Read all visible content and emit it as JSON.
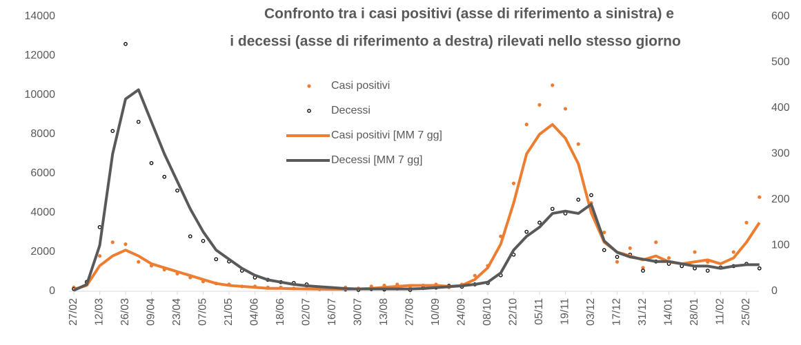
{
  "chart_data": {
    "type": "line",
    "title": [
      "Confronto tra i casi positivi (asse di riferimento a sinistra) e",
      "i decessi (asse di riferimento a destra) rilevati nello stesso giorno"
    ],
    "categories": [
      "27/02",
      null,
      "12/03",
      null,
      "26/03",
      null,
      "09/04",
      null,
      "23/04",
      null,
      "07/05",
      null,
      "21/05",
      null,
      "04/06",
      null,
      "18/06",
      null,
      "02/07",
      null,
      "16/07",
      null,
      "30/07",
      null,
      "13/08",
      null,
      "27/08",
      null,
      "10/09",
      null,
      "24/09",
      null,
      "08/10",
      null,
      "22/10",
      null,
      "05/11",
      null,
      "19/11",
      null,
      "03/12",
      null,
      "17/12",
      null,
      "31/12",
      null,
      "14/01",
      null,
      "28/01",
      null,
      "11/02",
      null,
      "25/02",
      null
    ],
    "ylim": [
      0,
      14000
    ],
    "yticks": [
      0,
      2000,
      4000,
      6000,
      8000,
      10000,
      12000,
      14000
    ],
    "y2lim": [
      0,
      600
    ],
    "y2ticks": [
      0,
      100,
      200,
      300,
      400,
      500,
      600
    ],
    "series": [
      {
        "name": "Casi positivi",
        "color": "#ed7d31",
        "mode": "markers",
        "values": [
          200,
          500,
          1800,
          2500,
          2400,
          1500,
          1300,
          1100,
          900,
          700,
          500,
          400,
          350,
          250,
          250,
          200,
          200,
          150,
          150,
          100,
          150,
          200,
          150,
          250,
          300,
          350,
          250,
          300,
          350,
          200,
          350,
          800,
          1300,
          2800,
          5500,
          8500,
          9500,
          10500,
          9300,
          7500,
          4500,
          3000,
          1500,
          2200,
          1200,
          2500,
          1700,
          1300,
          2000,
          1500,
          1200,
          2000,
          3500,
          4800
        ]
      },
      {
        "name": "Decessi",
        "color": "#000000",
        "mode": "markers",
        "axis": "y2",
        "values": [
          5,
          20,
          140,
          350,
          540,
          370,
          280,
          250,
          220,
          120,
          110,
          70,
          65,
          45,
          30,
          25,
          20,
          18,
          15,
          8,
          6,
          4,
          3,
          5,
          4,
          6,
          3,
          7,
          8,
          12,
          10,
          15,
          18,
          35,
          80,
          130,
          150,
          180,
          170,
          200,
          210,
          90,
          75,
          80,
          45,
          65,
          60,
          55,
          50,
          45,
          52,
          55,
          60,
          50
        ]
      },
      {
        "name": "Casi positivi [MM 7 gg]",
        "color": "#ed7d31",
        "mode": "line",
        "values": [
          100,
          300,
          1300,
          1800,
          2100,
          1800,
          1400,
          1200,
          1000,
          800,
          600,
          400,
          300,
          250,
          200,
          150,
          150,
          130,
          120,
          110,
          100,
          100,
          120,
          150,
          200,
          250,
          300,
          300,
          300,
          250,
          300,
          600,
          1200,
          2400,
          4500,
          7000,
          8000,
          8500,
          7800,
          6500,
          4000,
          2500,
          2000,
          1800,
          1600,
          1800,
          1500,
          1400,
          1500,
          1600,
          1400,
          1700,
          2500,
          3500
        ]
      },
      {
        "name": "Decessi [MM 7 gg]",
        "color": "#595959",
        "mode": "line",
        "axis": "y2",
        "values": [
          2,
          15,
          100,
          300,
          420,
          440,
          370,
          300,
          240,
          180,
          130,
          90,
          70,
          50,
          35,
          25,
          20,
          15,
          12,
          10,
          8,
          6,
          5,
          5,
          5,
          5,
          5,
          6,
          8,
          10,
          12,
          15,
          20,
          40,
          90,
          120,
          140,
          170,
          175,
          170,
          190,
          110,
          85,
          75,
          70,
          65,
          65,
          60,
          55,
          55,
          50,
          55,
          58,
          58
        ]
      }
    ]
  }
}
